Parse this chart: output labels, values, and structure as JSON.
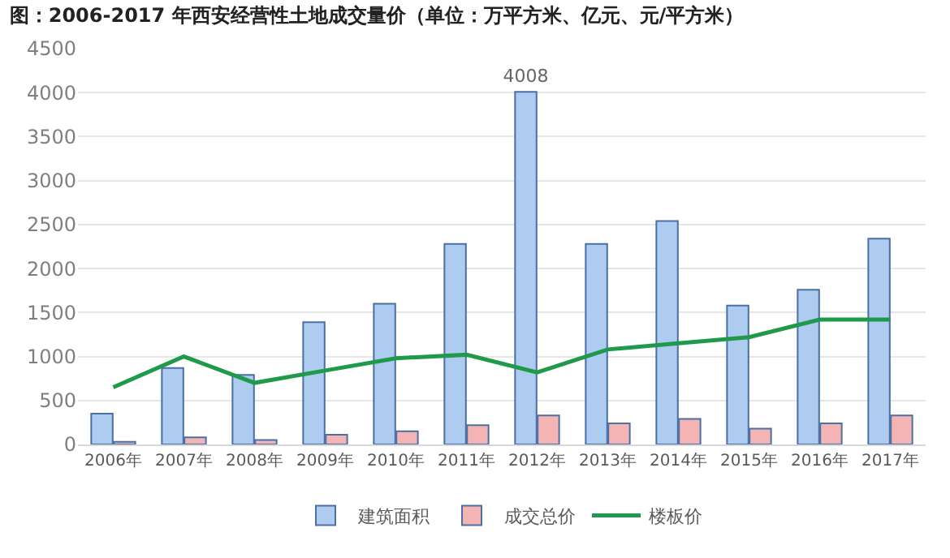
{
  "chart_data": {
    "type": "bar",
    "title": "图：2006-2017 年西安经营性土地成交量价（单位：万平方米、亿元、元/平方米）",
    "categories": [
      "2006年",
      "2007年",
      "2008年",
      "2009年",
      "2010年",
      "2011年",
      "2012年",
      "2013年",
      "2014年",
      "2015年",
      "2016年",
      "2017年"
    ],
    "series": [
      {
        "name": "建筑面积",
        "color": "#aecbf0",
        "values": [
          350,
          870,
          790,
          1390,
          1600,
          2280,
          4008,
          2280,
          2540,
          1580,
          1760,
          2340
        ],
        "value_labels": [
          null,
          null,
          null,
          null,
          null,
          null,
          "4008",
          null,
          null,
          null,
          null,
          null
        ]
      },
      {
        "name": "成交总价",
        "color": "#f4b4b4",
        "values": [
          30,
          80,
          50,
          110,
          150,
          220,
          330,
          240,
          290,
          180,
          240,
          330
        ]
      },
      {
        "name": "楼板价",
        "type": "line",
        "color": "#1f9a4a",
        "values": [
          650,
          1000,
          700,
          840,
          980,
          1020,
          820,
          1080,
          1150,
          1220,
          1420,
          1420
        ]
      }
    ],
    "ylim": [
      0,
      4500
    ],
    "yticks": [
      0,
      500,
      1000,
      1500,
      2000,
      2500,
      3000,
      3500,
      4000,
      4500
    ],
    "grid": "y",
    "legend": "bottom",
    "marker": "none"
  }
}
